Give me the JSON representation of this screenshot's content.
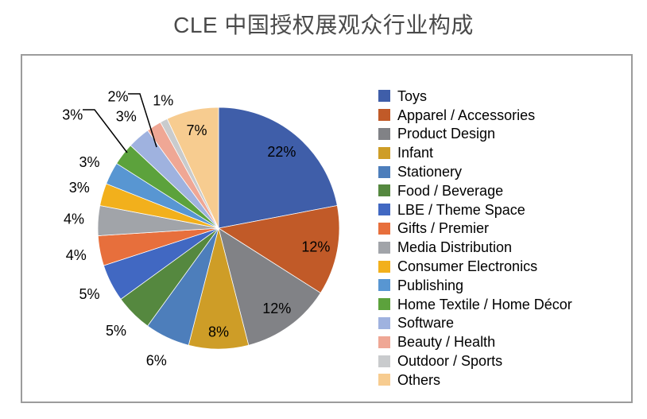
{
  "title": "CLE 中国授权展观众行业构成",
  "chart_data": {
    "type": "pie",
    "title": "CLE 中国授权展观众行业构成",
    "legend_position": "right",
    "start_angle_deg": 0,
    "direction": "clockwise",
    "data_labels": "percent",
    "slices": [
      {
        "label": "Toys",
        "value": 22,
        "display": "22%",
        "color": "#3F5EA9"
      },
      {
        "label": "Apparel / Accessories",
        "value": 12,
        "display": "12%",
        "color": "#C15A28"
      },
      {
        "label": "Product Design",
        "value": 12,
        "display": "12%",
        "color": "#818286"
      },
      {
        "label": "Infant",
        "value": 8,
        "display": "8%",
        "color": "#CE9D27"
      },
      {
        "label": "Stationery",
        "value": 6,
        "display": "6%",
        "color": "#4D7EBB"
      },
      {
        "label": "Food / Beverage",
        "value": 5,
        "display": "5%",
        "color": "#55883F"
      },
      {
        "label": "LBE / Theme Space",
        "value": 5,
        "display": "5%",
        "color": "#4168C2"
      },
      {
        "label": "Gifts / Premier",
        "value": 4,
        "display": "4%",
        "color": "#E76F3C"
      },
      {
        "label": "Media Distribution",
        "value": 4,
        "display": "4%",
        "color": "#A1A4A9"
      },
      {
        "label": "Consumer Electronics",
        "value": 3,
        "display": "3%",
        "color": "#F2B01C"
      },
      {
        "label": "Publishing",
        "value": 3,
        "display": "3%",
        "color": "#5896D2"
      },
      {
        "label": "Home Textile / Home Décor",
        "value": 3,
        "display": "3%",
        "color": "#5CA23C"
      },
      {
        "label": "Software",
        "value": 3,
        "display": "3%",
        "color": "#9FB2DF"
      },
      {
        "label": "Beauty / Health",
        "value": 2,
        "display": "2%",
        "color": "#EFA795"
      },
      {
        "label": "Outdoor / Sports",
        "value": 1,
        "display": "1%",
        "color": "#C9CBCD"
      },
      {
        "label": "Others",
        "value": 7,
        "display": "7%",
        "color": "#F7CC90"
      }
    ]
  }
}
